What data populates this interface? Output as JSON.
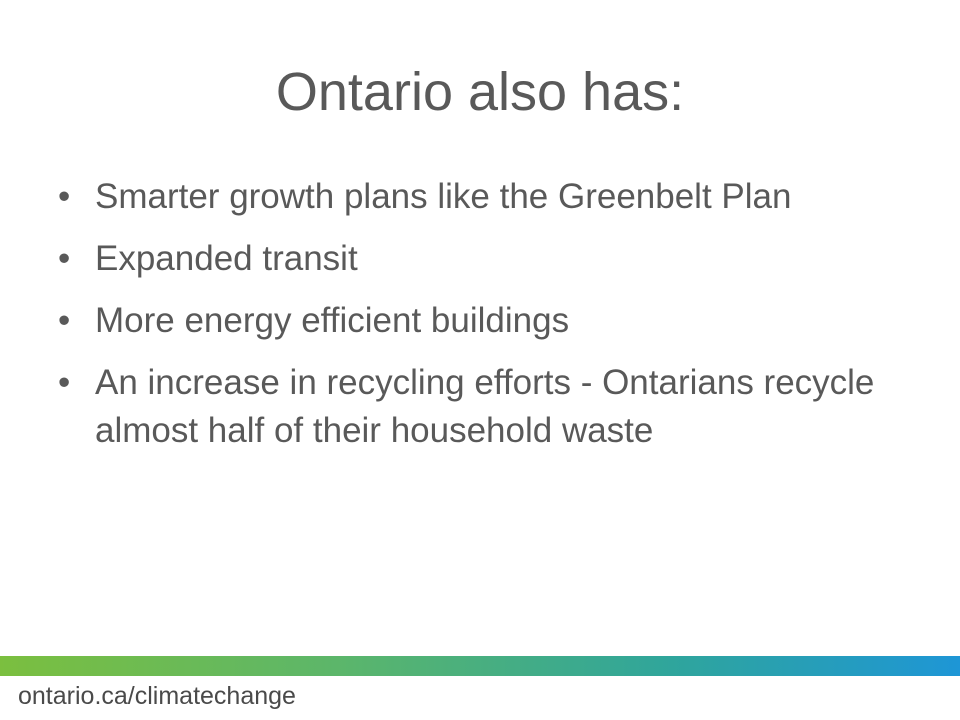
{
  "slide": {
    "title": "Ontario also has:",
    "bullet_marker": "•",
    "bullets": [
      "Smarter growth plans like the Greenbelt Plan",
      "Expanded transit",
      "More energy efficient buildings",
      "An increase in recycling efforts - Ontarians recycle almost half of their household waste"
    ]
  },
  "footer": {
    "url": "ontario.ca/climatechange"
  },
  "colors": {
    "text": "#595959",
    "gradient_start": "#7bbf3f",
    "gradient_end": "#1e96d6"
  }
}
